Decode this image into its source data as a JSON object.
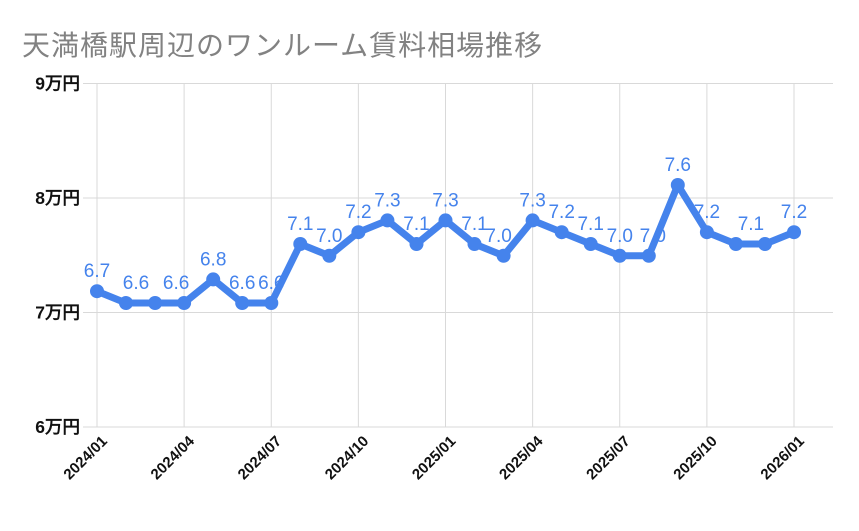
{
  "title": "天満橋駅周辺のワンルーム賃料相場推移",
  "colors": {
    "line": "#4583ec",
    "point": "#4583ec",
    "point_label": "#4583ec",
    "title_text": "#828282",
    "axis_text": "#111111",
    "grid": "#d9d9d9",
    "background": "#ffffff"
  },
  "chart_data": {
    "type": "line",
    "title": "天満橋駅周辺のワンルーム賃料相場推移",
    "x": [
      "2024/01",
      "2024/02",
      "2024/03",
      "2024/04",
      "2024/05",
      "2024/06",
      "2024/07",
      "2024/08",
      "2024/09",
      "2024/10",
      "2024/11",
      "2024/12",
      "2025/01",
      "2025/02",
      "2025/03",
      "2025/04",
      "2025/05",
      "2025/06",
      "2025/07",
      "2025/08",
      "2025/09",
      "2025/10",
      "2025/11",
      "2025/12",
      "2026/01"
    ],
    "values": [
      6.7,
      6.6,
      6.6,
      6.6,
      6.8,
      6.6,
      6.6,
      7.1,
      7.0,
      7.2,
      7.3,
      7.1,
      7.3,
      7.1,
      7.0,
      7.3,
      7.2,
      7.1,
      7.0,
      7.0,
      7.6,
      7.2,
      7.1,
      7.1,
      7.2
    ],
    "point_labels": [
      "6.7",
      "6.6",
      "",
      "6.6",
      "6.8",
      "6.6",
      "6.6",
      "7.1",
      "7.0",
      "7.2",
      "7.3",
      "7.1",
      "7.3",
      "7.1",
      "7.0",
      "7.3",
      "7.2",
      "7.1",
      "7.0",
      "7.0",
      "7.6",
      "7.2",
      "7.1",
      "",
      "7.2"
    ],
    "x_tick_labels": [
      "2024/01",
      "2024/04",
      "2024/07",
      "2024/10",
      "2025/01",
      "2025/04",
      "2025/07",
      "2025/10",
      "2026/01"
    ],
    "y_tick_labels": [
      "9万円",
      "8万円",
      "7万円",
      "6万円"
    ],
    "y_unit": "万円",
    "ylim": [
      6,
      9
    ],
    "grid": true,
    "legend": false
  }
}
